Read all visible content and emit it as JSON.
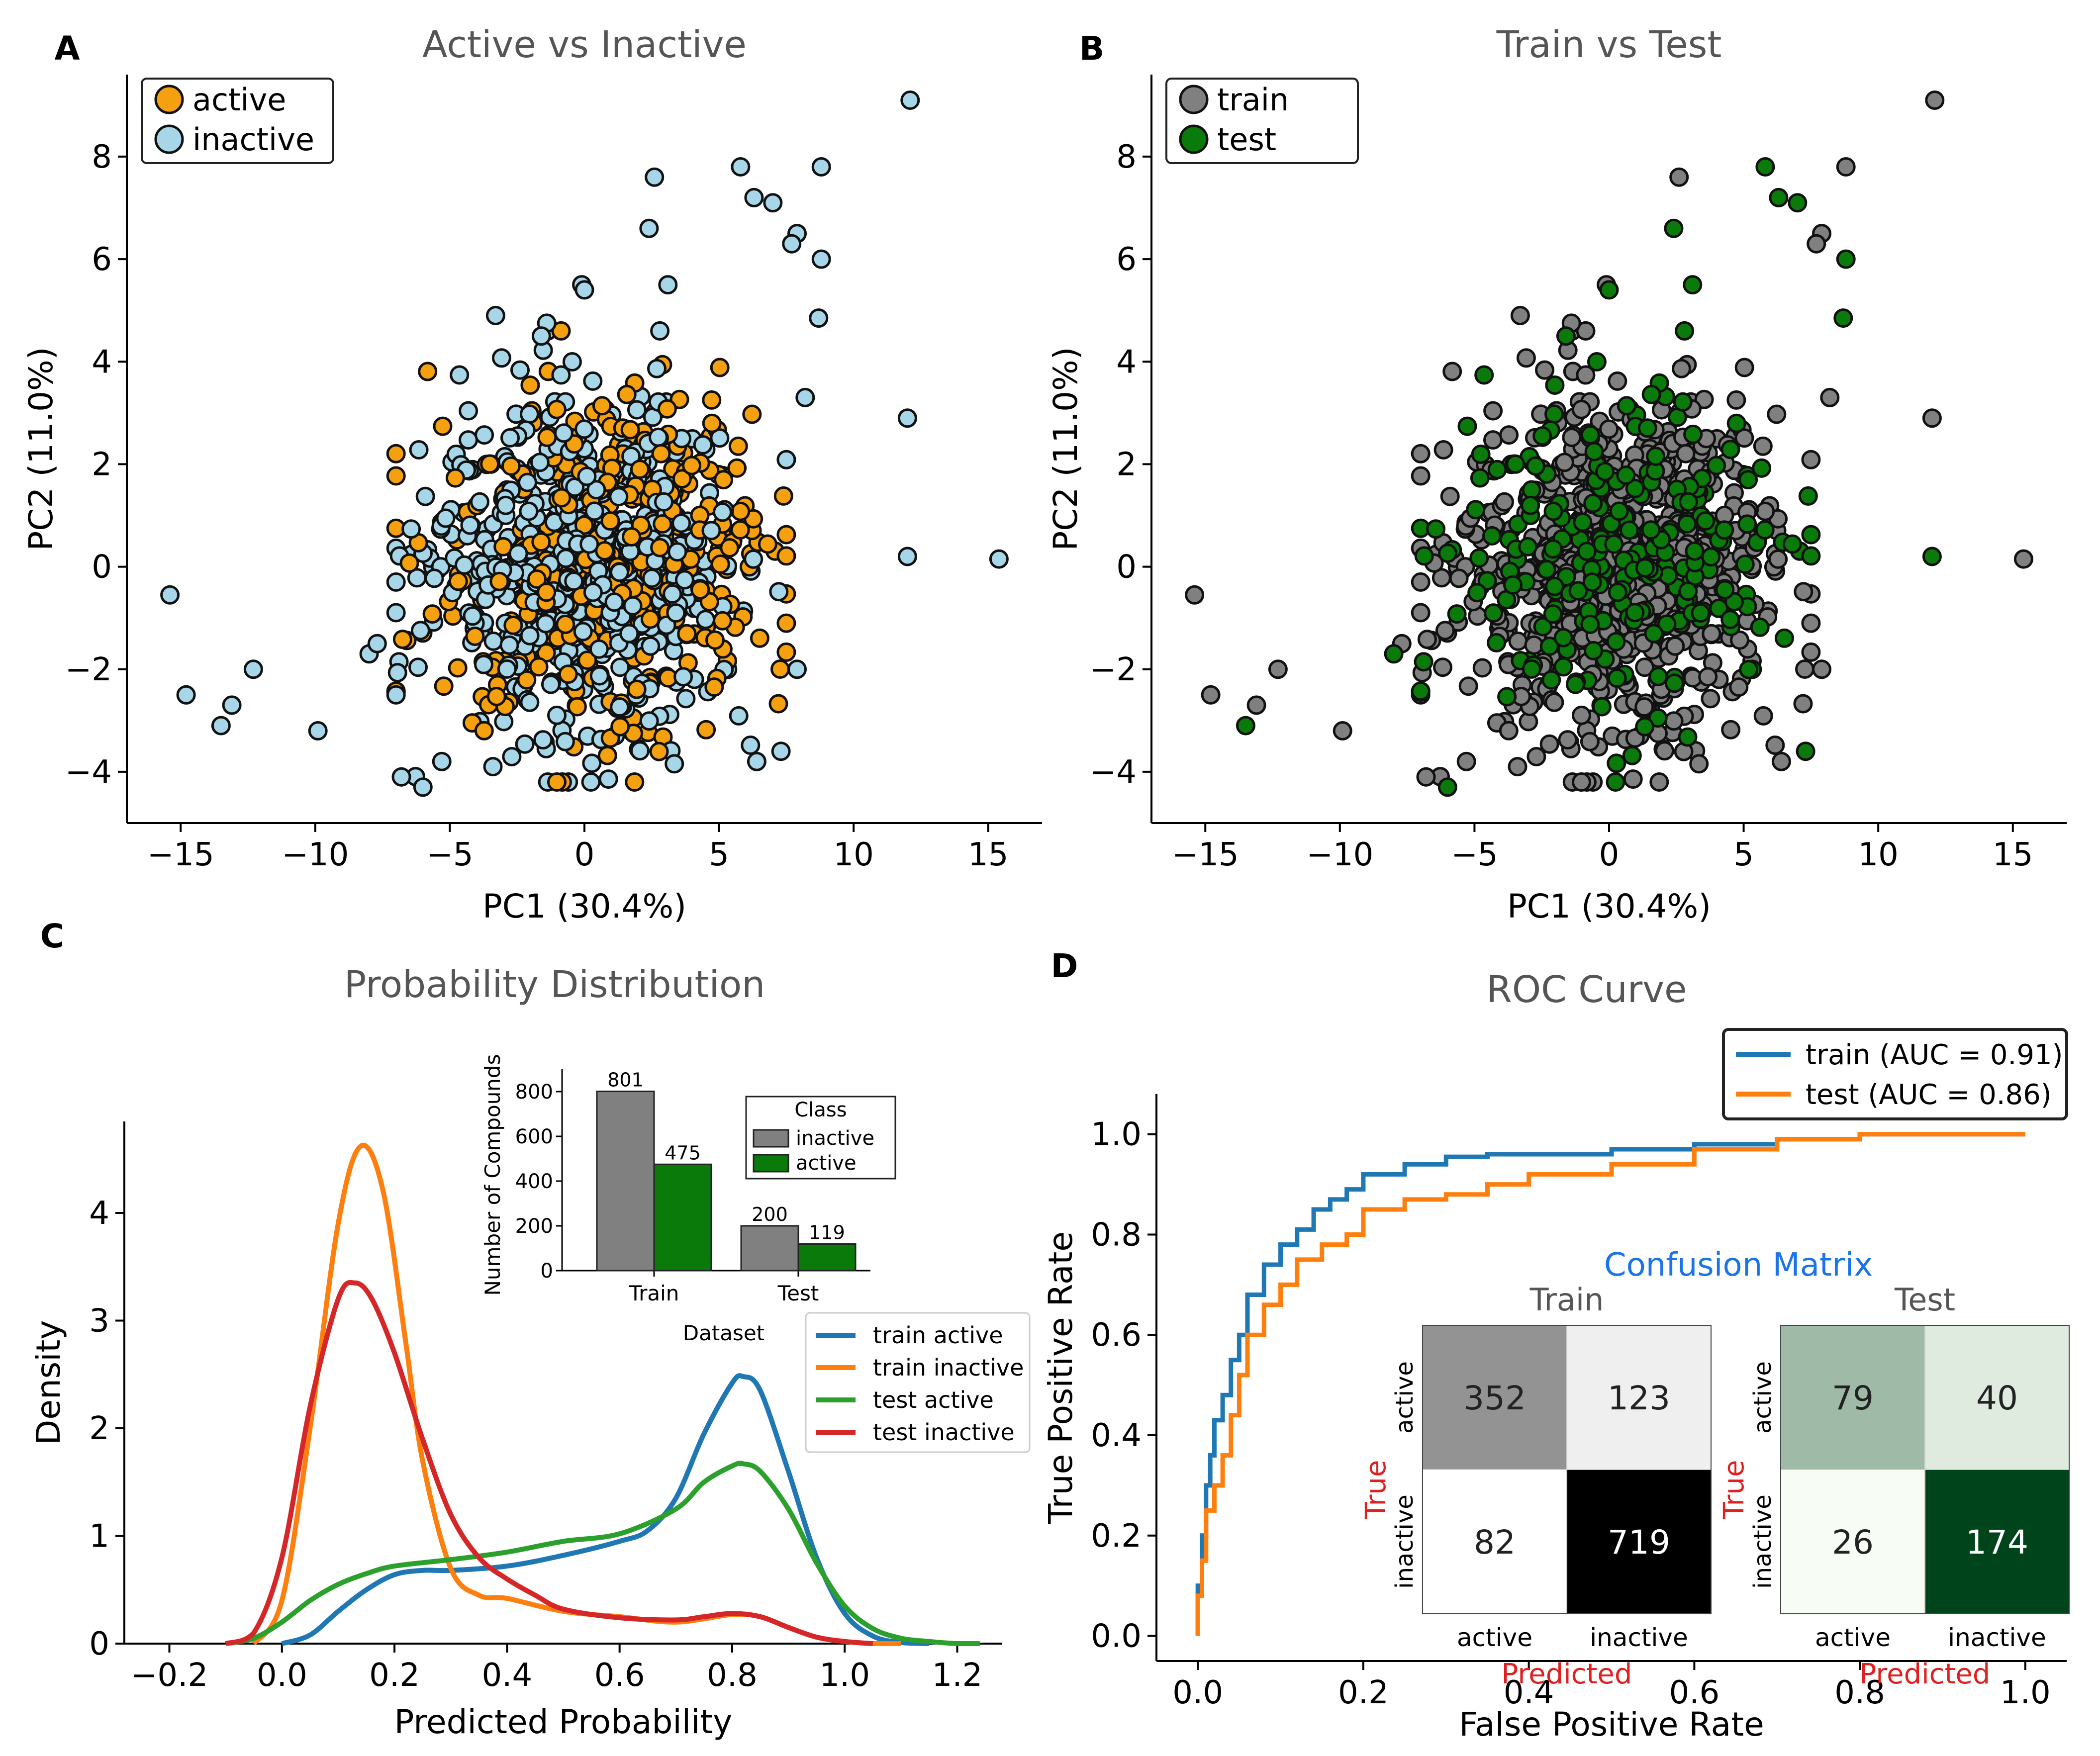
{
  "panels": {
    "A": {
      "label": "A",
      "title": "Active vs Inactive",
      "xlabel": "PC1 (30.4%)",
      "ylabel": "PC2 (11.0%)",
      "legend": [
        {
          "label": "active",
          "color": "#f5a00f"
        },
        {
          "label": "inactive",
          "color": "#a6d6e7"
        }
      ]
    },
    "B": {
      "label": "B",
      "title": "Train vs Test",
      "xlabel": "PC1 (30.4%)",
      "ylabel": "PC2 (11.0%)",
      "legend": [
        {
          "label": "train",
          "color": "#808080"
        },
        {
          "label": "test",
          "color": "#0a7a0a"
        }
      ]
    },
    "C": {
      "label": "C",
      "title": "Probability Distribution",
      "xlabel": "Predicted Probability",
      "ylabel": "Density",
      "legend": [
        {
          "label": "train active",
          "color": "#1f77b4"
        },
        {
          "label": "train inactive",
          "color": "#ff7f0e"
        },
        {
          "label": "test active",
          "color": "#2ca02c"
        },
        {
          "label": "test inactive",
          "color": "#d62728"
        }
      ],
      "inset": {
        "ylabel": "Number of Compounds",
        "xlabel": "Dataset",
        "legend_title": "Class",
        "legend": [
          {
            "label": "inactive",
            "color": "#808080"
          },
          {
            "label": "active",
            "color": "#0a7a0a"
          }
        ]
      }
    },
    "D": {
      "label": "D",
      "title": "ROC Curve",
      "xlabel": "False Positive Rate",
      "ylabel": "True Positive Rate",
      "legend": [
        {
          "label": "train (AUC = 0.91)",
          "color": "#1f77b4"
        },
        {
          "label": "test (AUC = 0.86)",
          "color": "#ff7f0e"
        }
      ],
      "cm": {
        "title": "Confusion Matrix",
        "true_label": "True",
        "pred_label": "Predicted",
        "train_title": "Train",
        "test_title": "Test",
        "classes": [
          "active",
          "inactive"
        ]
      }
    }
  },
  "chart_data": [
    {
      "id": "A",
      "type": "scatter",
      "title": "Active vs Inactive",
      "xlabel": "PC1 (30.4%)",
      "ylabel": "PC2 (11.0%)",
      "xlim": [
        -17,
        17
      ],
      "ylim": [
        -5,
        9.6
      ],
      "xticks": [
        -15,
        -10,
        -5,
        0,
        5,
        10,
        15
      ],
      "yticks": [
        -4,
        -2,
        0,
        2,
        4,
        6,
        8
      ],
      "series": [
        {
          "name": "active",
          "color": "#f5a00f"
        },
        {
          "name": "inactive",
          "color": "#a6d6e7"
        }
      ],
      "outliers": [
        [
          12.1,
          9.1
        ],
        [
          5.8,
          7.8
        ],
        [
          8.8,
          7.8
        ],
        [
          2.6,
          7.6
        ],
        [
          6.3,
          7.2
        ],
        [
          7.0,
          7.1
        ],
        [
          2.4,
          6.6
        ],
        [
          7.9,
          6.5
        ],
        [
          7.7,
          6.3
        ],
        [
          8.8,
          6.0
        ],
        [
          3.1,
          5.5
        ],
        [
          -0.1,
          5.5
        ],
        [
          0.0,
          5.4
        ],
        [
          -3.3,
          4.9
        ],
        [
          8.7,
          4.85
        ],
        [
          -1.4,
          4.75
        ],
        [
          -1.6,
          4.5
        ],
        [
          8.2,
          3.3
        ],
        [
          12.0,
          2.9
        ],
        [
          12.0,
          0.2
        ],
        [
          15.4,
          0.15
        ],
        [
          -15.4,
          -0.55
        ],
        [
          -14.8,
          -2.5
        ],
        [
          -13.1,
          -2.7
        ],
        [
          -12.3,
          -2.0
        ],
        [
          -13.5,
          -3.1
        ],
        [
          -9.9,
          -3.2
        ],
        [
          -8.0,
          -1.7
        ],
        [
          -7.7,
          -1.5
        ],
        [
          -7.0,
          -2.5
        ],
        [
          -6.8,
          -4.1
        ],
        [
          -6.0,
          -4.3
        ],
        [
          -5.3,
          -3.8
        ],
        [
          -3.4,
          -3.9
        ],
        [
          7.9,
          -2.0
        ],
        [
          7.3,
          -3.6
        ],
        [
          6.4,
          -3.8
        ]
      ],
      "cluster": {
        "x_range": [
          -7,
          7.5
        ],
        "y_range": [
          -4.2,
          4.6
        ],
        "count": 1000
      }
    },
    {
      "id": "B",
      "type": "scatter",
      "title": "Train vs Test",
      "xlabel": "PC1 (30.4%)",
      "ylabel": "PC2 (11.0%)",
      "xlim": [
        -17,
        17
      ],
      "ylim": [
        -5,
        9.6
      ],
      "xticks": [
        -15,
        -10,
        -5,
        0,
        5,
        10,
        15
      ],
      "yticks": [
        -4,
        -2,
        0,
        2,
        4,
        6,
        8
      ],
      "series": [
        {
          "name": "train",
          "color": "#808080"
        },
        {
          "name": "test",
          "color": "#0a7a0a"
        }
      ]
    },
    {
      "id": "C",
      "type": "line",
      "title": "Probability Distribution",
      "xlabel": "Predicted Probability",
      "ylabel": "Density",
      "xlim": [
        -0.28,
        1.28
      ],
      "ylim": [
        0,
        4.85
      ],
      "xticks": [
        -0.2,
        0.0,
        0.2,
        0.4,
        0.6,
        0.8,
        1.0,
        1.2
      ],
      "yticks": [
        0,
        1,
        2,
        3,
        4
      ],
      "series": [
        {
          "name": "train active",
          "color": "#1f77b4",
          "x": [
            0.0,
            0.05,
            0.1,
            0.15,
            0.2,
            0.25,
            0.3,
            0.4,
            0.5,
            0.6,
            0.65,
            0.7,
            0.75,
            0.8,
            0.82,
            0.85,
            0.9,
            0.95,
            1.0,
            1.05,
            1.1,
            1.15
          ],
          "y": [
            0.0,
            0.08,
            0.3,
            0.5,
            0.64,
            0.68,
            0.68,
            0.72,
            0.82,
            0.95,
            1.05,
            1.35,
            1.95,
            2.42,
            2.48,
            2.35,
            1.6,
            0.8,
            0.28,
            0.07,
            0.01,
            0.0
          ]
        },
        {
          "name": "train inactive",
          "color": "#ff7f0e",
          "x": [
            -0.05,
            0.0,
            0.05,
            0.1,
            0.14,
            0.18,
            0.22,
            0.25,
            0.3,
            0.35,
            0.4,
            0.5,
            0.6,
            0.7,
            0.8,
            0.85,
            0.9,
            0.95,
            1.0,
            1.05,
            1.1
          ],
          "y": [
            0.0,
            0.4,
            2.0,
            3.9,
            4.62,
            4.2,
            2.8,
            1.7,
            0.7,
            0.45,
            0.42,
            0.3,
            0.25,
            0.2,
            0.27,
            0.25,
            0.15,
            0.06,
            0.02,
            0.0,
            0.0
          ]
        },
        {
          "name": "test active",
          "color": "#2ca02c",
          "x": [
            -0.1,
            -0.05,
            0.0,
            0.05,
            0.1,
            0.15,
            0.2,
            0.3,
            0.4,
            0.5,
            0.6,
            0.7,
            0.75,
            0.8,
            0.82,
            0.85,
            0.9,
            0.95,
            1.0,
            1.05,
            1.1,
            1.15,
            1.2,
            1.24
          ],
          "y": [
            0.0,
            0.05,
            0.2,
            0.4,
            0.55,
            0.65,
            0.72,
            0.78,
            0.85,
            0.95,
            1.02,
            1.25,
            1.5,
            1.65,
            1.67,
            1.6,
            1.25,
            0.75,
            0.35,
            0.14,
            0.05,
            0.02,
            0.0,
            0.0
          ]
        },
        {
          "name": "test inactive",
          "color": "#d62728",
          "x": [
            -0.1,
            -0.05,
            0.0,
            0.05,
            0.1,
            0.13,
            0.16,
            0.2,
            0.25,
            0.3,
            0.35,
            0.4,
            0.45,
            0.5,
            0.6,
            0.7,
            0.75,
            0.8,
            0.85,
            0.9,
            0.95,
            1.0,
            1.05
          ],
          "y": [
            0.0,
            0.1,
            0.8,
            2.2,
            3.2,
            3.35,
            3.2,
            2.7,
            1.9,
            1.2,
            0.8,
            0.6,
            0.45,
            0.32,
            0.24,
            0.22,
            0.25,
            0.28,
            0.25,
            0.15,
            0.06,
            0.02,
            0.0
          ]
        }
      ]
    },
    {
      "id": "C-inset",
      "type": "bar",
      "xlabel": "Dataset",
      "ylabel": "Number of Compounds",
      "categories": [
        "Train",
        "Test"
      ],
      "ylim": [
        0,
        900
      ],
      "yticks": [
        0,
        200,
        400,
        600,
        800
      ],
      "series": [
        {
          "name": "inactive",
          "color": "#808080",
          "values": [
            801,
            200
          ]
        },
        {
          "name": "active",
          "color": "#0a7a0a",
          "values": [
            475,
            119
          ]
        }
      ]
    },
    {
      "id": "D",
      "type": "line",
      "title": "ROC Curve",
      "xlabel": "False Positive Rate",
      "ylabel": "True Positive Rate",
      "xlim": [
        -0.05,
        1.05
      ],
      "ylim": [
        -0.05,
        1.08
      ],
      "xticks": [
        0.0,
        0.2,
        0.4,
        0.6,
        0.8,
        1.0
      ],
      "yticks": [
        0.0,
        0.2,
        0.4,
        0.6,
        0.8,
        1.0
      ],
      "series": [
        {
          "name": "train (AUC = 0.91)",
          "color": "#1f77b4",
          "x": [
            0.0,
            0.005,
            0.01,
            0.015,
            0.02,
            0.03,
            0.04,
            0.05,
            0.06,
            0.08,
            0.1,
            0.12,
            0.14,
            0.16,
            0.18,
            0.2,
            0.25,
            0.3,
            0.35,
            0.4,
            0.5,
            0.6,
            0.7,
            0.8,
            0.9,
            1.0
          ],
          "y": [
            0.0,
            0.1,
            0.2,
            0.3,
            0.36,
            0.43,
            0.48,
            0.55,
            0.6,
            0.68,
            0.74,
            0.78,
            0.81,
            0.85,
            0.87,
            0.89,
            0.92,
            0.94,
            0.955,
            0.96,
            0.96,
            0.97,
            0.98,
            0.99,
            1.0,
            1.0
          ]
        },
        {
          "name": "test (AUC = 0.86)",
          "color": "#ff7f0e",
          "x": [
            0.0,
            0.005,
            0.01,
            0.02,
            0.03,
            0.04,
            0.05,
            0.06,
            0.08,
            0.1,
            0.12,
            0.15,
            0.18,
            0.2,
            0.25,
            0.3,
            0.35,
            0.4,
            0.5,
            0.6,
            0.7,
            0.8,
            0.9,
            1.0
          ],
          "y": [
            0.0,
            0.08,
            0.15,
            0.25,
            0.3,
            0.36,
            0.44,
            0.52,
            0.6,
            0.66,
            0.7,
            0.75,
            0.78,
            0.8,
            0.85,
            0.87,
            0.88,
            0.9,
            0.92,
            0.94,
            0.97,
            0.99,
            1.0,
            1.0
          ]
        }
      ],
      "confusion_matrix": {
        "train": {
          "rows": [
            "active",
            "inactive"
          ],
          "cols": [
            "active",
            "inactive"
          ],
          "values": [
            [
              352,
              123
            ],
            [
              82,
              719
            ]
          ]
        },
        "test": {
          "rows": [
            "active",
            "inactive"
          ],
          "cols": [
            "active",
            "inactive"
          ],
          "values": [
            [
              79,
              40
            ],
            [
              26,
              174
            ]
          ]
        }
      }
    }
  ]
}
